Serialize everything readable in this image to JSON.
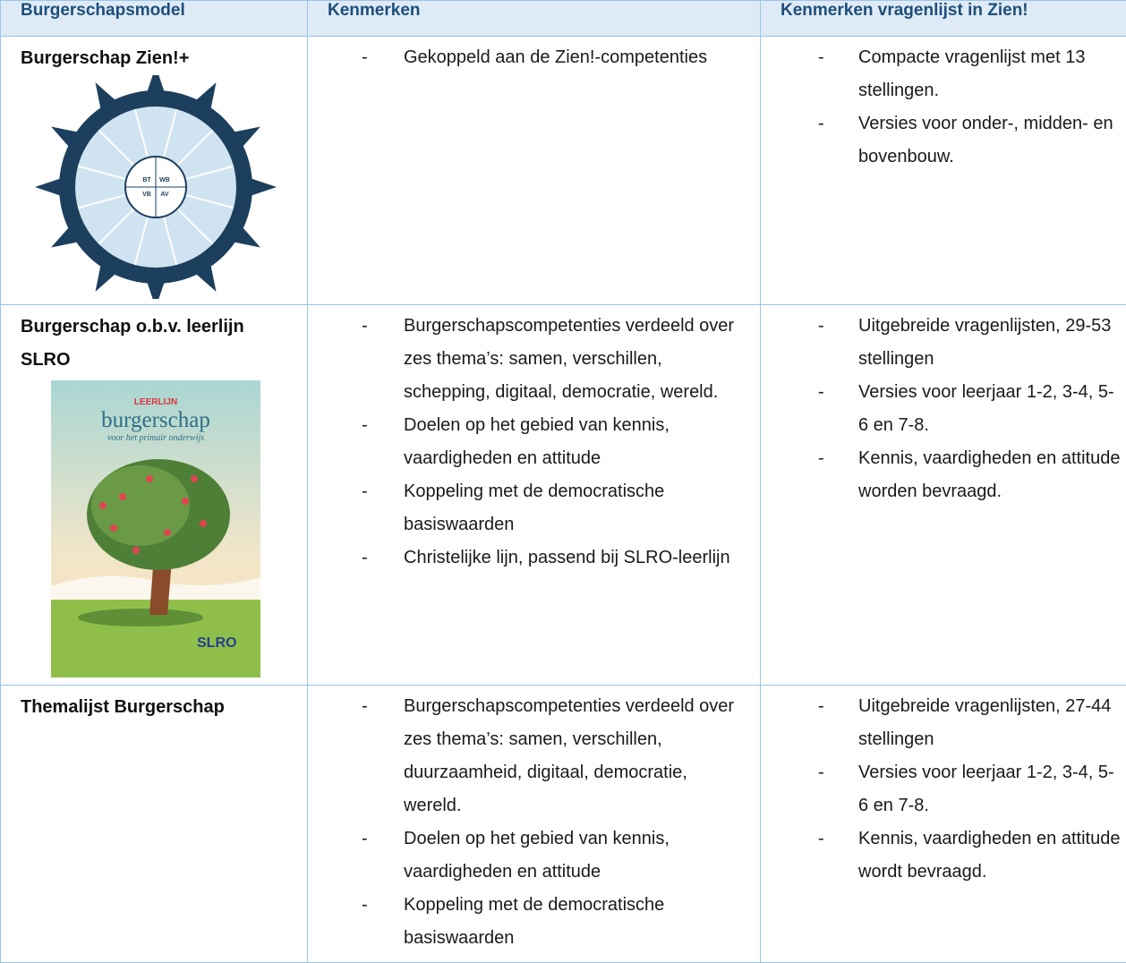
{
  "table": {
    "header": [
      "Burgerschapsmodel",
      "Kenmerken",
      "Kenmerken vragenlijst in Zien!"
    ],
    "rows": [
      {
        "title": "Burgerschap Zien!+",
        "image": {
          "labels": [
            "BT",
            "WB",
            "VB",
            "AV"
          ]
        },
        "kenmerken": [
          "Gekoppeld aan de Zien!-competenties"
        ],
        "vragenlijst": [
          "Compacte vragenlijst met 13 stellingen.",
          "Versies voor onder-, midden- en bovenbouw."
        ]
      },
      {
        "title": "Burgerschap o.b.v. leerlijn SLRO",
        "image": {
          "labels": [
            "LEERLIJN",
            "burgerschap",
            "voor het primair onderwijs",
            "SLRO"
          ]
        },
        "kenmerken": [
          "Burgerschapscompetenties verdeeld over zes thema’s: samen, verschillen, schepping, digitaal, democratie, wereld.",
          "Doelen op het gebied van kennis, vaardigheden en attitude",
          "Koppeling met de democratische basiswaarden",
          "Christelijke lijn, passend bij SLRO-leerlijn"
        ],
        "vragenlijst": [
          "Uitgebreide vragenlijsten, 29-53 stellingen",
          "Versies voor leerjaar 1-2, 3-4, 5-6 en 7-8.",
          "Kennis, vaardigheden en attitude worden bevraagd."
        ]
      },
      {
        "title": "Themalijst Burgerschap",
        "kenmerken": [
          "Burgerschapscompetenties verdeeld over zes thema’s: samen, verschillen, duurzaamheid, digitaal, democratie, wereld.",
          "Doelen op het gebied van kennis, vaardigheden en attitude",
          "Koppeling met de democratische basiswaarden"
        ],
        "vragenlijst": [
          "Uitgebreide vragenlijsten, 27-44 stellingen",
          "Versies voor leerjaar 1-2, 3-4, 5-6 en 7-8.",
          "Kennis, vaardigheden en attitude wordt bevraagd."
        ]
      }
    ]
  }
}
